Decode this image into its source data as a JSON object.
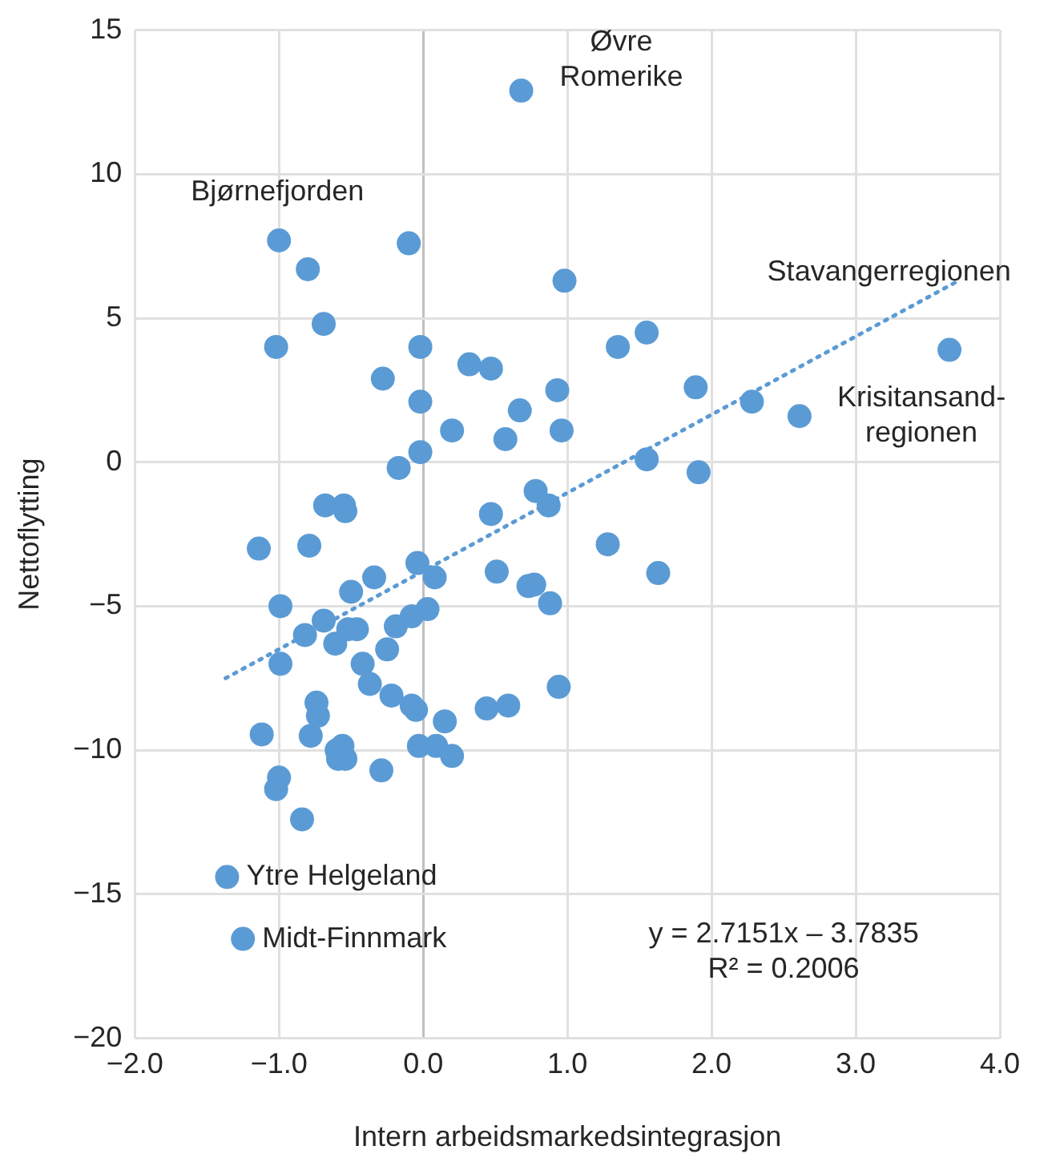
{
  "chart_data": {
    "type": "scatter",
    "xlabel": "Intern arbeidsmarkedsintegrasjon",
    "ylabel": "Nettoflytting",
    "xlim": [
      -2,
      4
    ],
    "xticks": [
      {
        "value": -2,
        "label": "−2.0"
      },
      {
        "value": -1,
        "label": "−1.0"
      },
      {
        "value": 0,
        "label": "0.0"
      },
      {
        "value": 1,
        "label": "1.0"
      },
      {
        "value": 2,
        "label": "2.0"
      },
      {
        "value": 3,
        "label": "3.0"
      },
      {
        "value": 4,
        "label": "4.0"
      }
    ],
    "ylim": [
      -20,
      15
    ],
    "yticks": [
      {
        "value": -20,
        "label": "−20"
      },
      {
        "value": -15,
        "label": "−15"
      },
      {
        "value": -10,
        "label": "−10"
      },
      {
        "value": -5,
        "label": "−5"
      },
      0,
      5,
      10,
      15
    ],
    "grid": true,
    "legend": false,
    "marker": "circle",
    "series": [
      {
        "type": "scatter",
        "color": "#5b9bd5",
        "x": [
          0.68,
          -1.0,
          -0.8,
          -0.1,
          0.98,
          -0.69,
          -1.02,
          -0.02,
          -0.28,
          0.32,
          0.47,
          -0.02,
          0.93,
          0.67,
          0.2,
          0.57,
          0.96,
          -0.17,
          -0.02,
          1.35,
          1.55,
          1.89,
          2.28,
          2.61,
          3.65,
          1.55,
          1.91,
          0.78,
          0.87,
          0.47,
          -0.68,
          -0.55,
          -0.54,
          -1.14,
          -0.79,
          1.28,
          1.63,
          -0.04,
          -0.34,
          0.08,
          -0.99,
          -0.5,
          0.51,
          0.73,
          0.77,
          0.88,
          -0.08,
          0.03,
          -0.69,
          -0.19,
          -0.52,
          -0.46,
          -0.82,
          -0.61,
          -0.25,
          -0.99,
          -0.42,
          -0.37,
          -0.74,
          -0.73,
          -0.22,
          -0.08,
          -0.05,
          0.44,
          0.59,
          0.94,
          0.15,
          -0.78,
          -1.12,
          -0.56,
          -0.6,
          -0.54,
          -0.59,
          -0.03,
          0.09,
          0.2,
          -0.29,
          -1.0,
          -1.02,
          -0.84,
          -1.36,
          -1.25
        ],
        "values": [
          12.9,
          7.7,
          6.7,
          7.6,
          6.3,
          4.8,
          4.0,
          4.0,
          2.9,
          3.4,
          3.25,
          2.1,
          2.5,
          1.8,
          1.1,
          0.8,
          1.1,
          -0.2,
          0.35,
          4.0,
          4.5,
          2.6,
          2.1,
          1.6,
          3.9,
          0.1,
          -0.35,
          -1.0,
          -1.5,
          -1.8,
          -1.5,
          -1.5,
          -1.7,
          -3.0,
          -2.9,
          -2.85,
          -3.85,
          -3.5,
          -4.0,
          -4.0,
          -5.0,
          -4.5,
          -3.8,
          -4.3,
          -4.25,
          -4.9,
          -5.35,
          -5.1,
          -5.5,
          -5.7,
          -5.8,
          -5.8,
          -6.0,
          -6.3,
          -6.5,
          -7.0,
          -7.0,
          -7.7,
          -8.35,
          -8.8,
          -8.1,
          -8.45,
          -8.6,
          -8.55,
          -8.45,
          -7.8,
          -9.0,
          -9.5,
          -9.45,
          -9.85,
          -10.0,
          -10.3,
          -10.3,
          -9.85,
          -9.85,
          -10.2,
          -10.7,
          -10.95,
          -11.35,
          -12.4,
          -14.4,
          -16.55
        ]
      },
      {
        "type": "line",
        "color": "#5b9bd5",
        "line_style": "dotted",
        "marker": "none",
        "x": [
          -1.37,
          3.72
        ],
        "values": [
          -7.5,
          6.32
        ]
      }
    ],
    "annotations": [
      {
        "text": "Øvre\nRomerike",
        "x": 0.68,
        "y": 12.9
      },
      {
        "text": "Bjørnefjorden",
        "x": -1.0,
        "y": 7.7
      },
      {
        "text": "Stavangerregionen",
        "x": 3.72,
        "y": 6.32
      },
      {
        "text": "Krisitansand-\nregionen",
        "x": 3.65,
        "y": 3.9
      },
      {
        "text": "Ytre Helgeland",
        "x": -1.36,
        "y": -14.4
      },
      {
        "text": "Midt-Finnmark",
        "x": -1.25,
        "y": -16.55
      },
      "y = 2.7151x – 3.7835\nR² = 0.2006"
    ]
  }
}
